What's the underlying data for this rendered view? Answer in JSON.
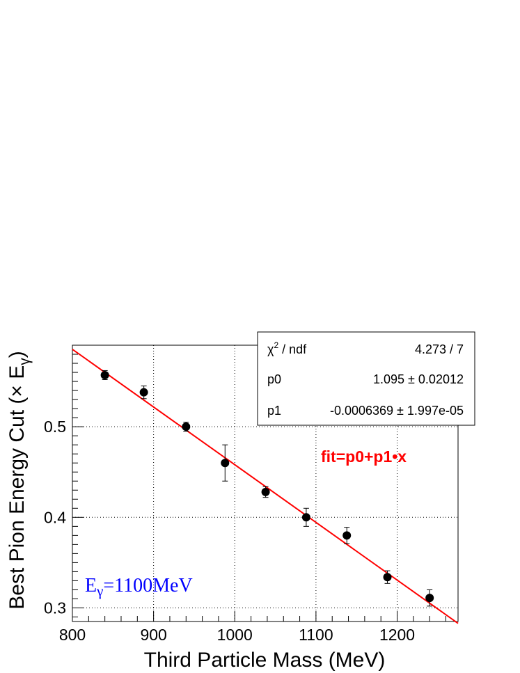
{
  "chart_data": {
    "type": "scatter",
    "xlabel": "Third Particle Mass (MeV)",
    "ylabel_main": "Best Pion Energy Cut (× E",
    "ylabel_sub": "γ",
    "ylabel_close": ")",
    "xlim": [
      800,
      1275
    ],
    "ylim": [
      0.285,
      0.59
    ],
    "x_ticks": [
      800,
      900,
      1000,
      1100,
      1200
    ],
    "x_tick_labels": [
      "800",
      "900",
      "1000",
      "1100",
      "1200"
    ],
    "y_ticks": [
      0.3,
      0.4,
      0.5
    ],
    "y_tick_labels": [
      "0.3",
      "0.4",
      "0.5"
    ],
    "grid": true,
    "series": [
      {
        "x": [
          840,
          888,
          940,
          988,
          1038,
          1088,
          1138,
          1188,
          1240
        ],
        "y": [
          0.557,
          0.538,
          0.5,
          0.46,
          0.428,
          0.4,
          0.38,
          0.334,
          0.311
        ],
        "yerr": [
          0.005,
          0.007,
          0.005,
          0.02,
          0.006,
          0.01,
          0.009,
          0.007,
          0.009
        ],
        "color": "#000000"
      }
    ],
    "fit": {
      "p0": 1.095,
      "p1": -0.0006369,
      "color": "#ff0000",
      "label": "fit=p0+p1•x"
    },
    "stats_box": {
      "chi2_label_main": "χ",
      "chi2_label_sup": "2",
      "chi2_label_rest": " / ndf",
      "chi2_value": "4.273 / 7",
      "p0_label": "p0",
      "p0_value": "1.095 ± 0.02012",
      "p1_label": "p1",
      "p1_value": "-0.0006369 ± 1.997e-05"
    },
    "energy_annotation": {
      "main": "E",
      "sub": "γ",
      "rest": "=1100MeV",
      "color": "#0000ff"
    }
  }
}
